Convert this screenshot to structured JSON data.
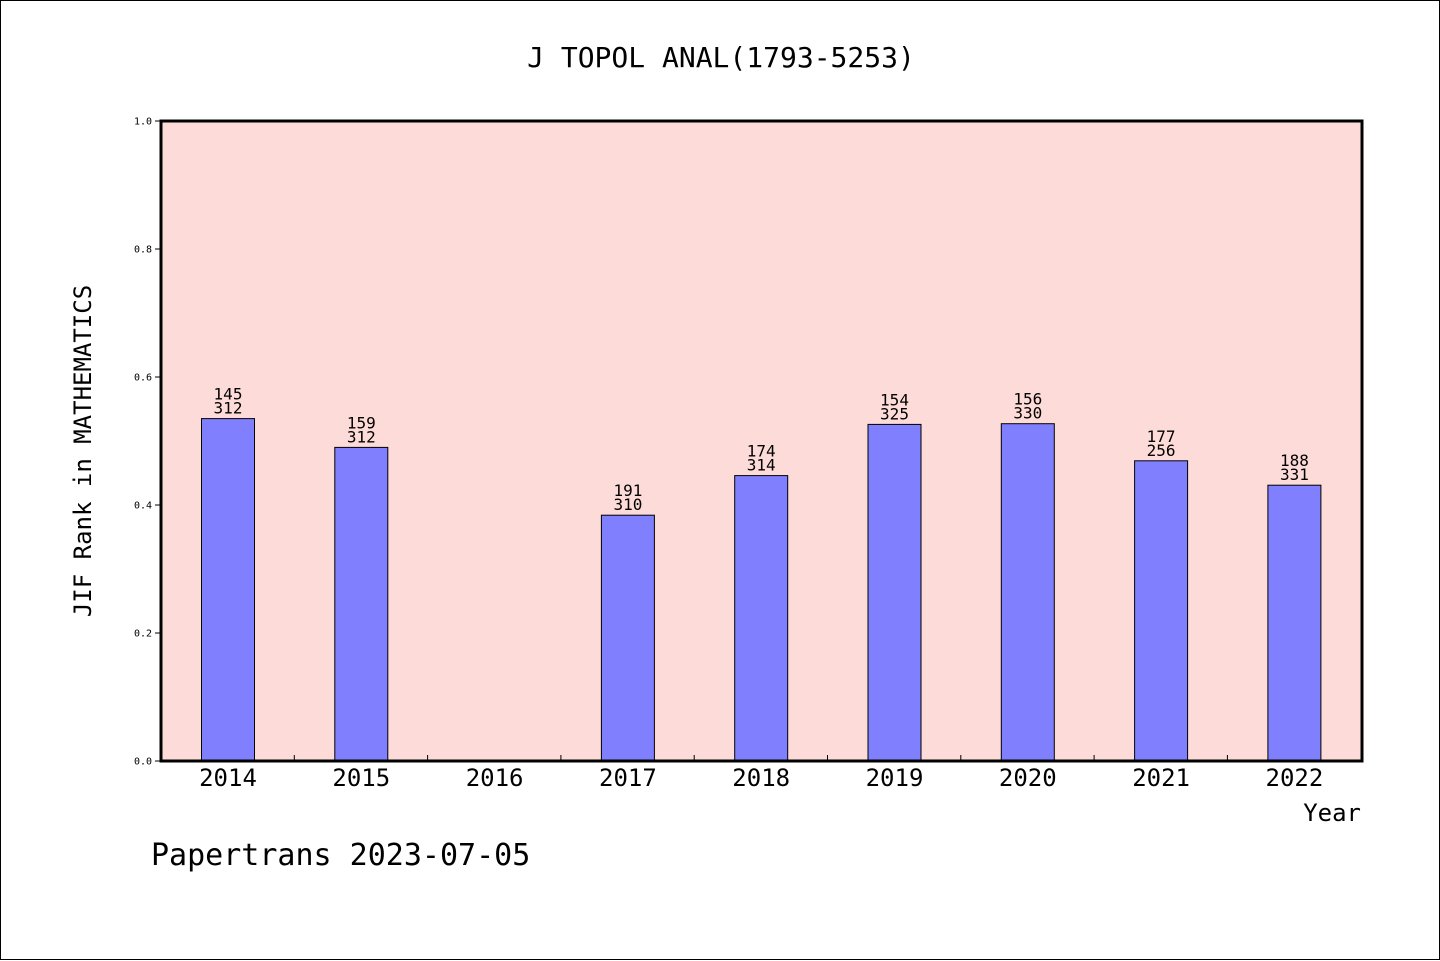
{
  "chart_data": {
    "type": "bar",
    "title": "J TOPOL ANAL(1793-5253)",
    "xlabel": "Year",
    "ylabel": "JIF Rank in MATHEMATICS",
    "ylim": [
      0,
      1.0
    ],
    "yticks": [
      "0.0",
      "0.2",
      "0.4",
      "0.6",
      "0.8",
      "1.0"
    ],
    "ytick_values": [
      0,
      0.2,
      0.4,
      0.6,
      0.8,
      1.0
    ],
    "categories": [
      "2014",
      "2015",
      "2016",
      "2017",
      "2018",
      "2019",
      "2020",
      "2021",
      "2022"
    ],
    "values": [
      0.535,
      0.49,
      null,
      0.384,
      0.446,
      0.526,
      0.527,
      0.469,
      0.431
    ],
    "rank_labels": [
      "145",
      "159",
      "",
      "191",
      "174",
      "154",
      "156",
      "177",
      "188"
    ],
    "total_labels": [
      "312",
      "312",
      "",
      "310",
      "314",
      "325",
      "330",
      "256",
      "331"
    ],
    "grid": false,
    "legend": "none",
    "colors": {
      "plot_background": "#fddbd8",
      "bar_fill": "#8080ff",
      "bar_stroke": "#000000",
      "axis": "#000000"
    }
  },
  "footer": {
    "text": "Papertrans 2023-07-05"
  }
}
